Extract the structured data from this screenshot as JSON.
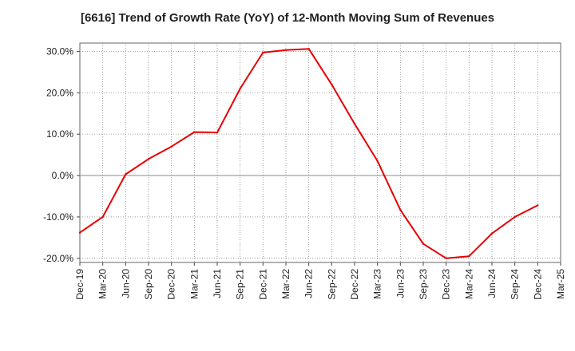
{
  "chart_data": {
    "type": "line",
    "title": "[6616]  Trend of Growth Rate (YoY) of 12-Month Moving Sum of Revenues",
    "xlabel": "",
    "ylabel": "",
    "ylim": [
      -21,
      32
    ],
    "y_ticks": [
      {
        "value": 30,
        "label": "30.0%"
      },
      {
        "value": 20,
        "label": "20.0%"
      },
      {
        "value": 10,
        "label": "10.0%"
      },
      {
        "value": 0,
        "label": "0.0%"
      },
      {
        "value": -10,
        "label": "-10.0%"
      },
      {
        "value": -20,
        "label": "-20.0%"
      }
    ],
    "x_ticks": [
      "Dec-19",
      "Mar-20",
      "Jun-20",
      "Sep-20",
      "Dec-20",
      "Mar-21",
      "Jun-21",
      "Sep-21",
      "Dec-21",
      "Mar-22",
      "Jun-22",
      "Sep-22",
      "Dec-22",
      "Mar-23",
      "Jun-23",
      "Sep-23",
      "Dec-23",
      "Mar-24",
      "Jun-24",
      "Sep-24",
      "Dec-24",
      "Mar-25"
    ],
    "grid": true,
    "series": [
      {
        "color": "#e60000",
        "x": [
          "Dec-19",
          "Mar-20",
          "Jun-20",
          "Sep-20",
          "Dec-20",
          "Mar-21",
          "Jun-21",
          "Sep-21",
          "Dec-21",
          "Mar-22",
          "Jun-22",
          "Sep-22",
          "Dec-22",
          "Mar-23",
          "Jun-23",
          "Sep-23",
          "Dec-23",
          "Mar-24",
          "Jun-24",
          "Sep-24",
          "Dec-24"
        ],
        "values": [
          -13.8,
          -10.0,
          0.3,
          4.0,
          7.0,
          10.5,
          10.4,
          21.0,
          29.7,
          30.3,
          30.6,
          22.0,
          12.5,
          3.5,
          -8.3,
          -16.5,
          -20.0,
          -19.5,
          -14.0,
          -10.0,
          -7.2
        ]
      }
    ]
  }
}
